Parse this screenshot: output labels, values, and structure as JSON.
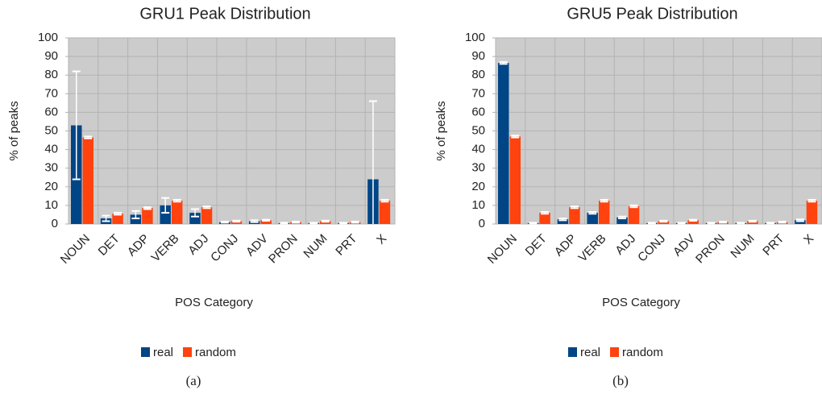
{
  "chart_data": [
    {
      "type": "bar",
      "title": "GRU1 Peak Distribution",
      "xlabel": "POS Category",
      "ylabel": "% of peaks",
      "categories": [
        "NOUN",
        "DET",
        "ADP",
        "VERB",
        "ADJ",
        "CONJ",
        "ADV",
        "PRON",
        "NUM",
        "PRT",
        "X"
      ],
      "series": [
        {
          "name": "real",
          "color": "#004586",
          "values": [
            53,
            3,
            5,
            10,
            6,
            1,
            1.5,
            0.5,
            0.5,
            0.5,
            24
          ],
          "errors": [
            29,
            1.5,
            2,
            4,
            2,
            0.3,
            0.5,
            0.2,
            0.2,
            0.2,
            42
          ]
        },
        {
          "name": "random",
          "color": "#ff420e",
          "values": [
            46.5,
            5.5,
            8.5,
            12.5,
            9,
            1.5,
            2,
            1,
            1.5,
            1,
            12.5
          ],
          "errors": [
            0.5,
            0.5,
            0.5,
            0.5,
            0.5,
            0.3,
            0.3,
            0.3,
            0.3,
            0.3,
            0.5
          ]
        }
      ],
      "ylim": [
        0,
        100
      ],
      "yticks": [
        0,
        10,
        20,
        30,
        40,
        50,
        60,
        70,
        80,
        90,
        100
      ],
      "grid": true,
      "legend": "bottom",
      "caption": "(a)"
    },
    {
      "type": "bar",
      "title": "GRU5 Peak Distribution",
      "xlabel": "POS Category",
      "ylabel": "% of peaks",
      "categories": [
        "NOUN",
        "DET",
        "ADP",
        "VERB",
        "ADJ",
        "CONJ",
        "ADV",
        "PRON",
        "NUM",
        "PRT",
        "X"
      ],
      "series": [
        {
          "name": "real",
          "color": "#004586",
          "values": [
            86.5,
            0.5,
            2.5,
            6,
            3.5,
            0.5,
            0.5,
            0.5,
            0.5,
            0.5,
            2
          ],
          "errors": [
            0.5,
            0.2,
            0.5,
            0.5,
            0.5,
            0.2,
            0.2,
            0.2,
            0.2,
            0.2,
            0.5
          ]
        },
        {
          "name": "random",
          "color": "#ff420e",
          "values": [
            47,
            6,
            9,
            12.5,
            9.5,
            1.5,
            2,
            1,
            1.5,
            1,
            12.5
          ],
          "errors": [
            0.5,
            0.5,
            0.5,
            0.5,
            0.5,
            0.3,
            0.3,
            0.3,
            0.3,
            0.3,
            0.5
          ]
        }
      ],
      "ylim": [
        0,
        100
      ],
      "yticks": [
        0,
        10,
        20,
        30,
        40,
        50,
        60,
        70,
        80,
        90,
        100
      ],
      "grid": true,
      "legend": "bottom",
      "caption": "(b)"
    }
  ]
}
